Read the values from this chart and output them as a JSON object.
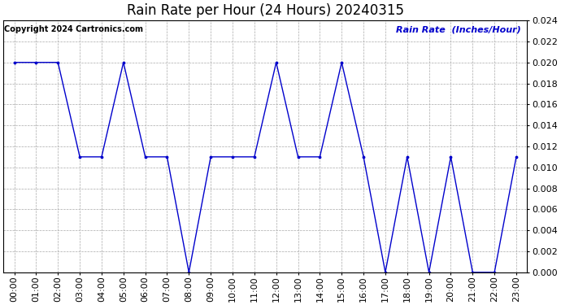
{
  "title": "Rain Rate per Hour (24 Hours) 20240315",
  "copyright_text": "Copyright 2024 Cartronics.com",
  "legend_label": "Rain Rate  (Inches/Hour)",
  "x_labels": [
    "00:00",
    "01:00",
    "02:00",
    "03:00",
    "04:00",
    "05:00",
    "06:00",
    "07:00",
    "08:00",
    "09:00",
    "10:00",
    "11:00",
    "12:00",
    "13:00",
    "14:00",
    "15:00",
    "16:00",
    "17:00",
    "18:00",
    "19:00",
    "20:00",
    "21:00",
    "22:00",
    "23:00"
  ],
  "hours": [
    0,
    1,
    2,
    3,
    4,
    5,
    6,
    7,
    8,
    9,
    10,
    11,
    12,
    13,
    14,
    15,
    16,
    17,
    18,
    19,
    20,
    21,
    22,
    23
  ],
  "values": [
    0.02,
    0.02,
    0.02,
    0.011,
    0.011,
    0.02,
    0.011,
    0.011,
    0.0,
    0.011,
    0.011,
    0.011,
    0.02,
    0.011,
    0.011,
    0.02,
    0.011,
    0.0,
    0.011,
    0.0,
    0.011,
    0.0,
    0.0,
    0.011
  ],
  "line_color": "#0000cc",
  "marker_color": "#0000cc",
  "grid_color": "#aaaaaa",
  "background_color": "#ffffff",
  "title_color": "#000000",
  "copyright_color": "#000000",
  "legend_color": "#0000cc",
  "ylim": [
    0.0,
    0.024
  ],
  "yticks": [
    0.0,
    0.002,
    0.004,
    0.006,
    0.008,
    0.01,
    0.012,
    0.014,
    0.016,
    0.018,
    0.02,
    0.022,
    0.024
  ],
  "title_fontsize": 12,
  "tick_fontsize": 8,
  "copyright_fontsize": 7,
  "legend_fontsize": 8
}
